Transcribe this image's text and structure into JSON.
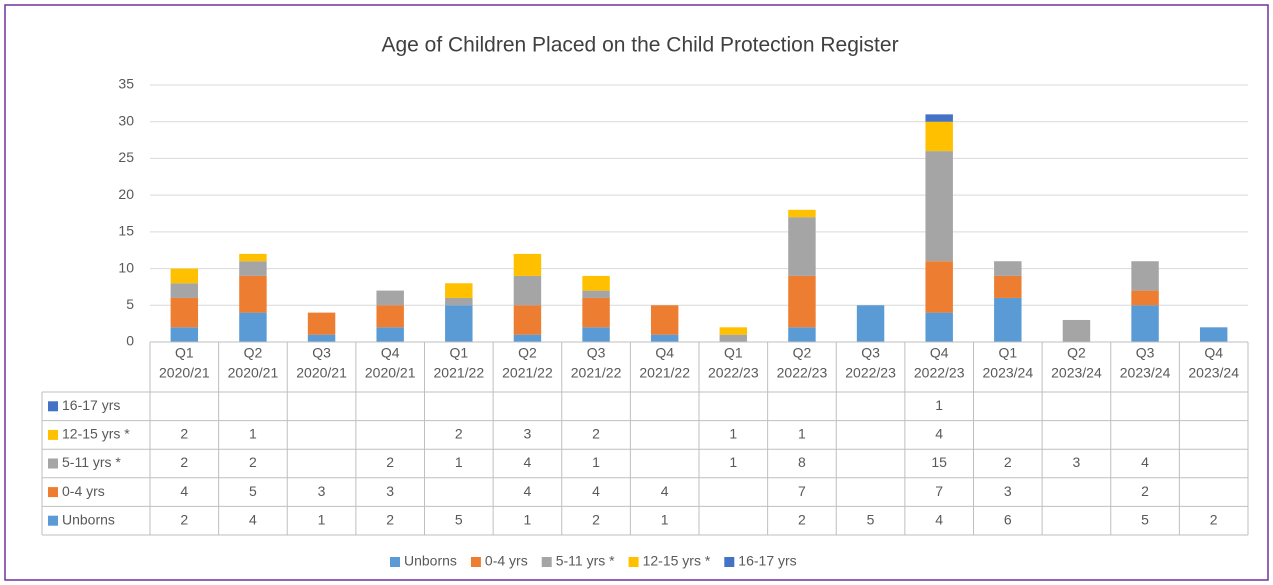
{
  "chart_data": {
    "type": "stacked_bar",
    "title": "Age of Children Placed on the Child Protection Register",
    "categories": [
      [
        "Q1",
        "2020/21"
      ],
      [
        "Q2",
        "2020/21"
      ],
      [
        "Q3",
        "2020/21"
      ],
      [
        "Q4",
        "2020/21"
      ],
      [
        "Q1",
        "2021/22"
      ],
      [
        "Q2",
        "2021/22"
      ],
      [
        "Q3",
        "2021/22"
      ],
      [
        "Q4",
        "2021/22"
      ],
      [
        "Q1",
        "2022/23"
      ],
      [
        "Q2",
        "2022/23"
      ],
      [
        "Q3",
        "2022/23"
      ],
      [
        "Q4",
        "2022/23"
      ],
      [
        "Q1",
        "2023/24"
      ],
      [
        "Q2",
        "2023/24"
      ],
      [
        "Q3",
        "2023/24"
      ],
      [
        "Q4",
        "2023/24"
      ]
    ],
    "series": [
      {
        "name": "Unborns",
        "color": "#5b9bd5",
        "values": [
          2,
          4,
          1,
          2,
          5,
          1,
          2,
          1,
          null,
          2,
          5,
          4,
          6,
          null,
          5,
          2
        ]
      },
      {
        "name": "0-4 yrs",
        "color": "#ed7d31",
        "values": [
          4,
          5,
          3,
          3,
          null,
          4,
          4,
          4,
          null,
          7,
          null,
          7,
          3,
          null,
          2,
          null
        ]
      },
      {
        "name": "5-11 yrs *",
        "color": "#a5a5a5",
        "values": [
          2,
          2,
          null,
          2,
          1,
          4,
          1,
          null,
          1,
          8,
          null,
          15,
          2,
          3,
          4,
          null
        ]
      },
      {
        "name": "12-15 yrs *",
        "color": "#ffc000",
        "values": [
          2,
          1,
          null,
          null,
          2,
          3,
          2,
          null,
          1,
          1,
          null,
          4,
          null,
          null,
          null,
          null
        ]
      },
      {
        "name": "16-17 yrs",
        "color": "#4472c4",
        "values": [
          null,
          null,
          null,
          null,
          null,
          null,
          null,
          null,
          null,
          null,
          null,
          1,
          null,
          null,
          null,
          null
        ]
      }
    ],
    "ylim": [
      0,
      35
    ],
    "yticks": [
      0,
      5,
      10,
      15,
      20,
      25,
      30,
      35
    ],
    "grid": true,
    "legend": "bottom",
    "data_table": true
  }
}
